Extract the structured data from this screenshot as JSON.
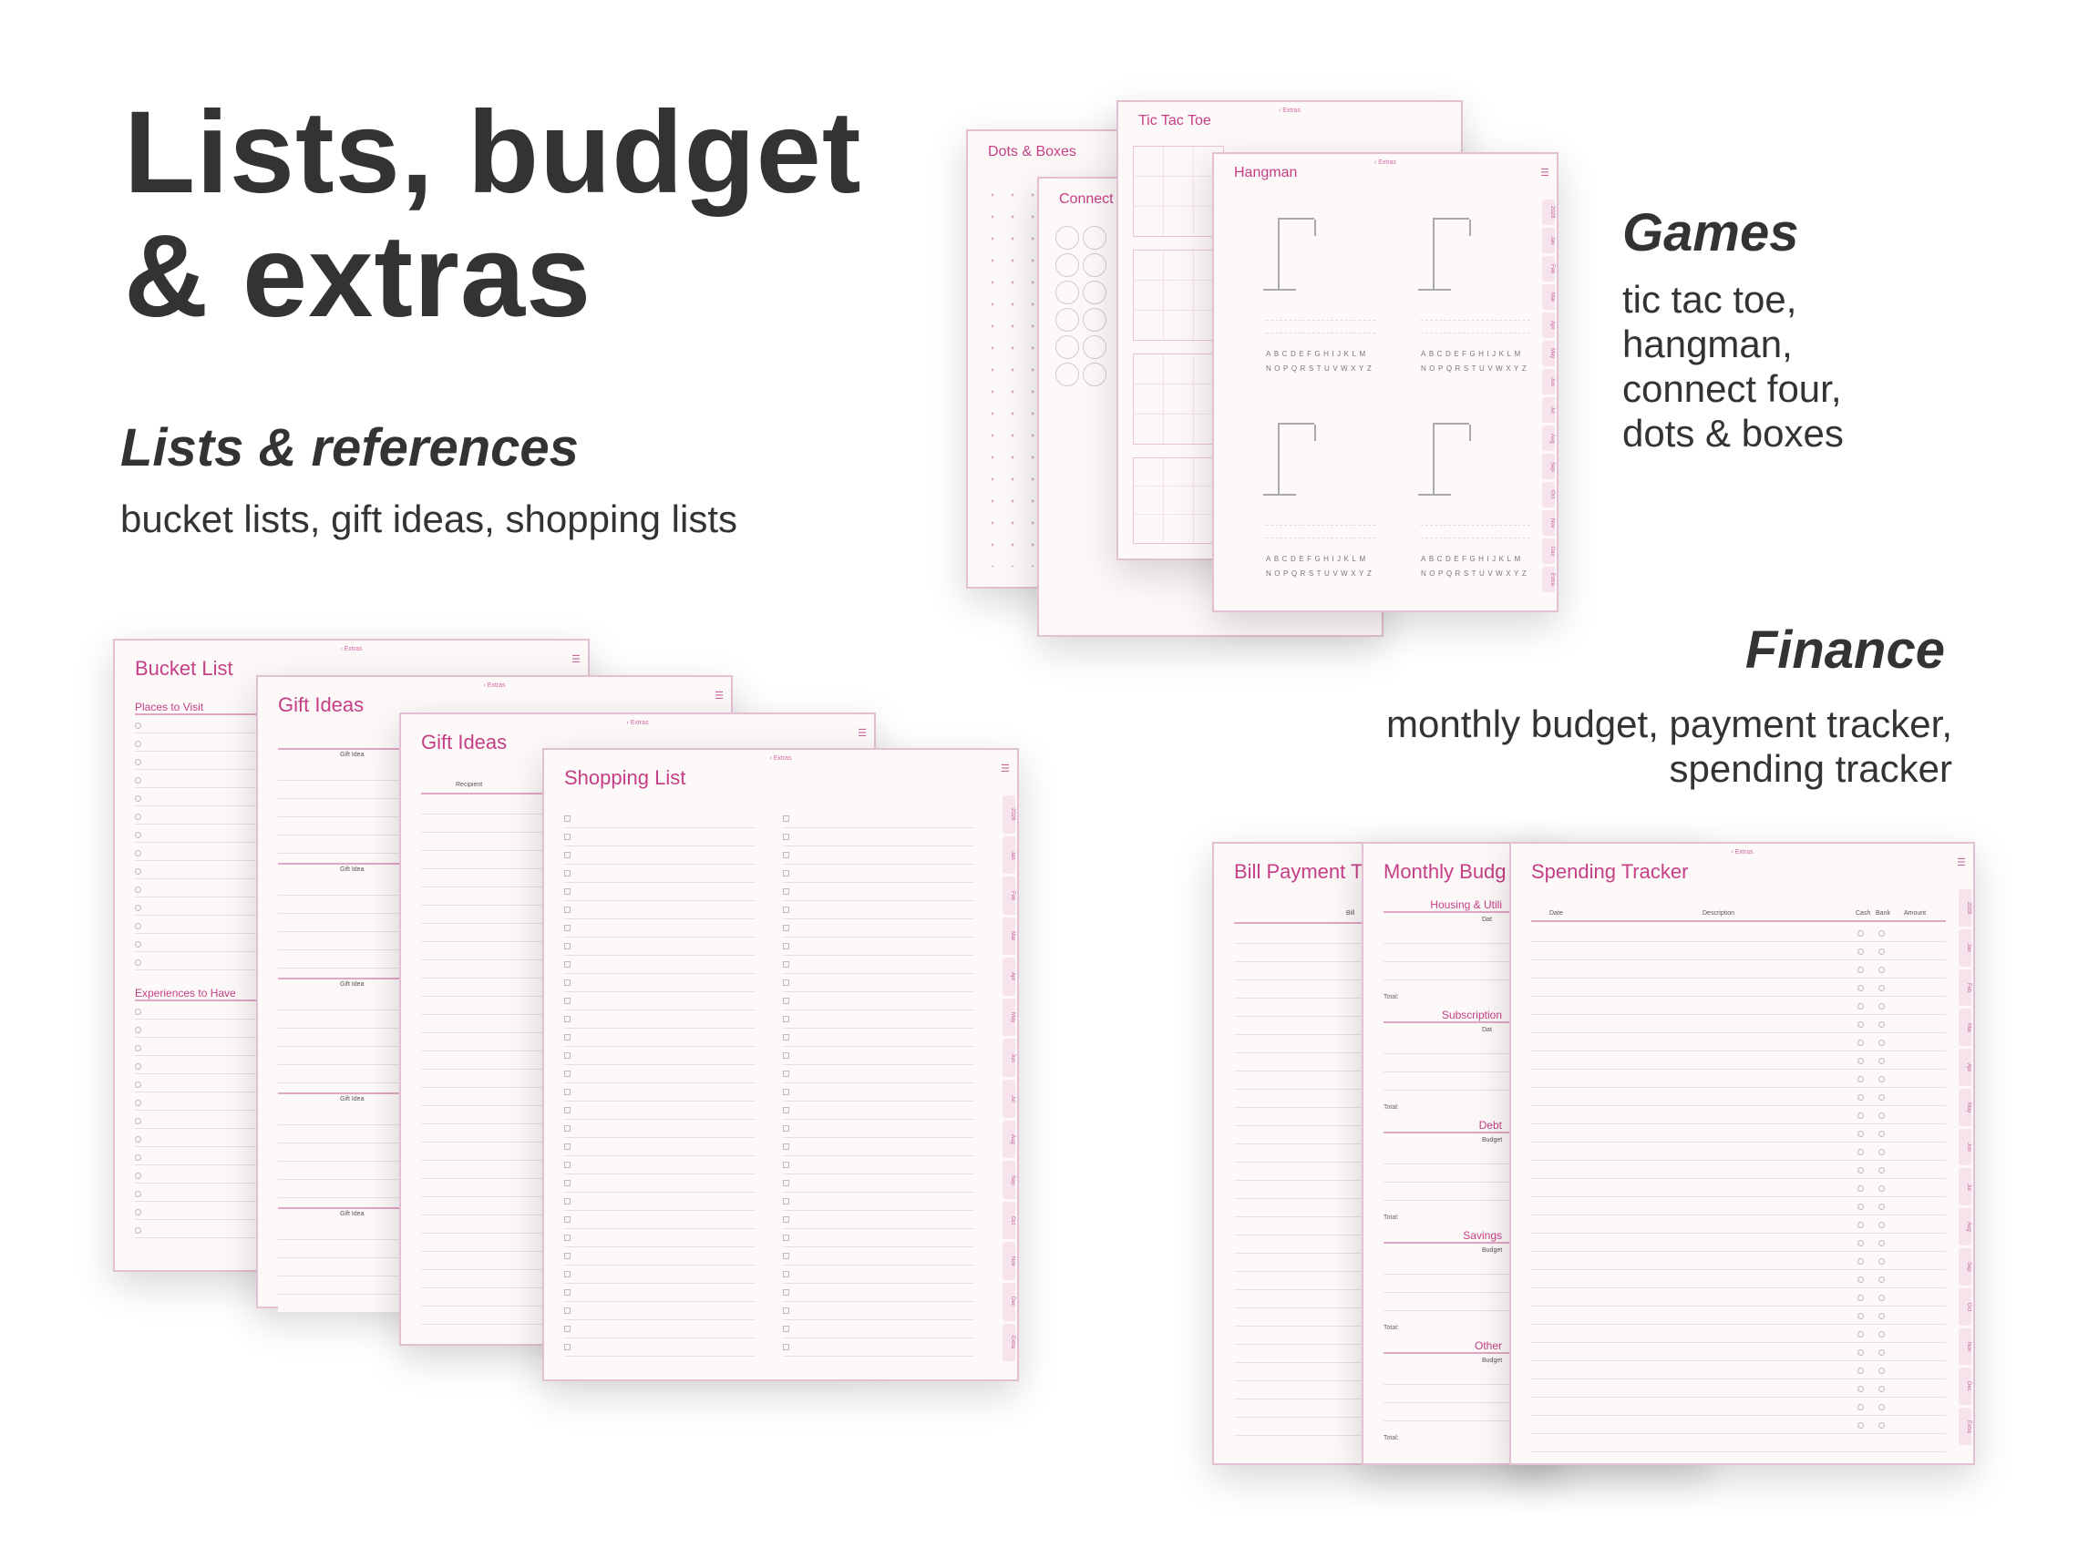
{
  "heading": {
    "line1": "Lists, budget",
    "line2": "& extras"
  },
  "lists_section": {
    "title": "Lists & references",
    "text": "bucket lists, gift ideas, shopping lists"
  },
  "games_section": {
    "title": "Games",
    "items": [
      "tic tac toe,",
      "hangman,",
      "connect four,",
      "dots & boxes"
    ]
  },
  "finance_section": {
    "title": "Finance",
    "lines": [
      "monthly budget, payment tracker,",
      "spending tracker"
    ]
  },
  "breadcrumb": "‹ Extras",
  "side_tabs": [
    "2028",
    "Jan",
    "Feb",
    "Mar",
    "Apr",
    "May",
    "Jun",
    "Jul",
    "Aug",
    "Sep",
    "Oct",
    "Nov",
    "Dec",
    "Extra"
  ],
  "pages": {
    "dots": {
      "title": "Dots & Boxes"
    },
    "connect": {
      "title": "Connect"
    },
    "tictactoe": {
      "title": "Tic Tac Toe"
    },
    "hangman": {
      "title": "Hangman",
      "alpha1": "ABCDEFGHIJKLM",
      "alpha2": "NOPQRSTUVWXYZ"
    },
    "bucket": {
      "title": "Bucket List",
      "sec1": "Places to Visit",
      "sec2": "Experiences to Have"
    },
    "gift1": {
      "title": "Gift Ideas",
      "col": "Gift Idea"
    },
    "gift2": {
      "title": "Gift Ideas",
      "col": "Recipient"
    },
    "shopping": {
      "title": "Shopping List"
    },
    "bill": {
      "title": "Bill Payment T",
      "col": "Bill"
    },
    "budget": {
      "title": "Monthly Budg",
      "sections": [
        "Housing & Utili",
        "Subscription",
        "Debt",
        "Savings",
        "Other"
      ],
      "col_date": "Dat",
      "col_budget": "Budget",
      "total": "Total:"
    },
    "spending": {
      "title": "Spending Tracker",
      "cols": [
        "Date",
        "Description",
        "Cash",
        "Bank",
        "Amount"
      ]
    }
  },
  "colors": {
    "accent": "#c53e86",
    "page_bg": "#fdf9f9",
    "heading": "#333333"
  }
}
